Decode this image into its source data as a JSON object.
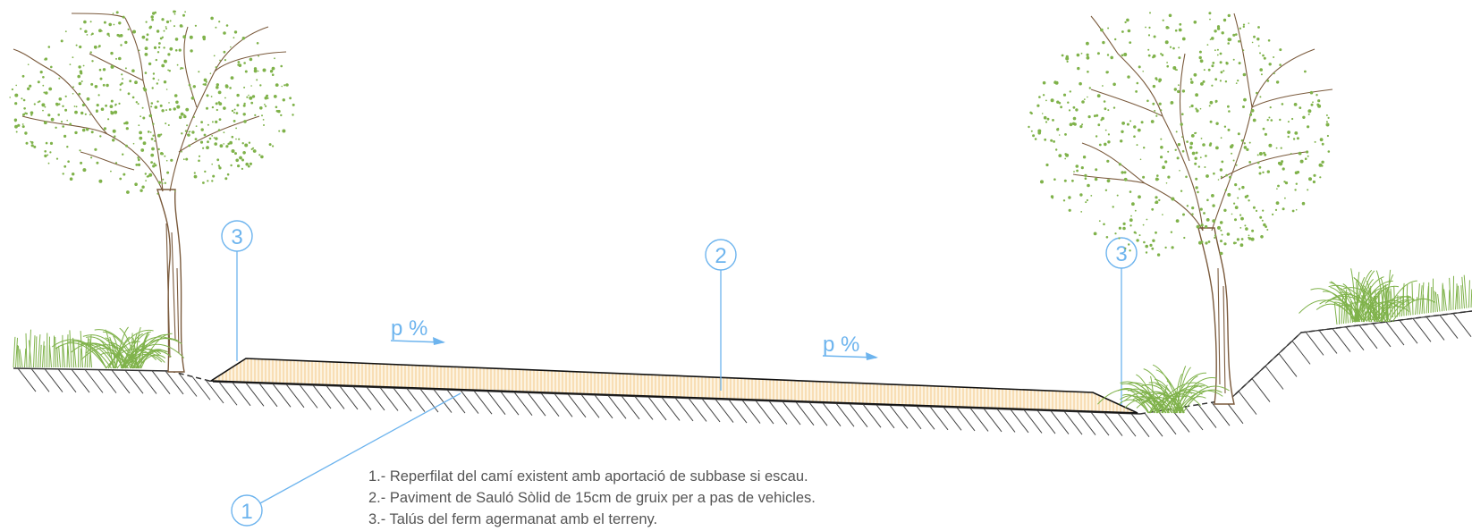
{
  "callouts": {
    "c1": "1",
    "c2": "2",
    "c3_left": "3",
    "c3_right": "3"
  },
  "slope_labels": {
    "left": "p %",
    "right": "p %"
  },
  "legend": [
    "1.- Reperfilat del camí existent amb aportació de subbase si escau.",
    "2.- Paviment de Sauló Sòlid de 15cm de gruix per a pas de vehicles.",
    "3.- Talús del ferm agermanat amb el terreny."
  ],
  "colors": {
    "callout": "#6db4ee",
    "pavement_hatch": "#f2c98a",
    "pavement_fill": "#fdf3e0",
    "ground": "#333333",
    "trunk": "#7a5a3c",
    "foliage": "#7fb24a",
    "text": "#555555"
  },
  "icons": {
    "tree": "tree-icon",
    "shrub": "shrub-icon",
    "grass": "grass-icon"
  }
}
